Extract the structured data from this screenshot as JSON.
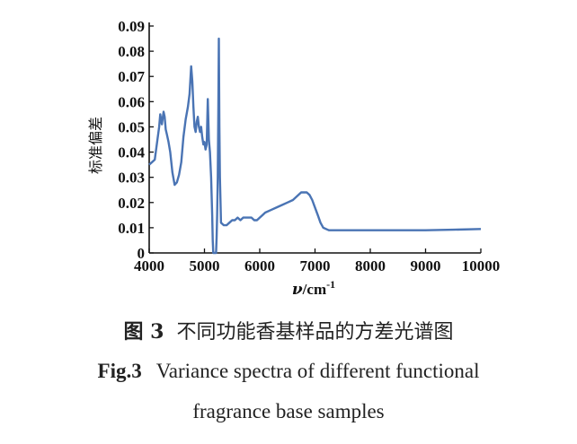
{
  "chart_data": {
    "type": "line",
    "title": "",
    "xlabel_symbol": "ν",
    "xlabel_unit": "/cm",
    "xlabel_exp": "-1",
    "ylabel": "标准偏差",
    "xlim": [
      4000,
      10000
    ],
    "ylim": [
      0,
      0.09
    ],
    "x_ticks": [
      "4000",
      "5000",
      "6000",
      "7000",
      "8000",
      "9000",
      "10000"
    ],
    "y_ticks": [
      "0",
      "0.01",
      "0.02",
      "0.03",
      "0.04",
      "0.05",
      "0.06",
      "0.07",
      "0.08",
      "0.09"
    ],
    "line_color": "#4a74b4",
    "grid": false,
    "series": [
      {
        "x": [
          4000,
          4050,
          4100,
          4150,
          4180,
          4200,
          4230,
          4260,
          4280,
          4300,
          4320,
          4350,
          4380,
          4420,
          4460,
          4500,
          4540,
          4580,
          4620,
          4660,
          4700,
          4730,
          4760,
          4780,
          4800,
          4820,
          4840,
          4860,
          4880,
          4900,
          4920,
          4940,
          4960,
          4980,
          5000,
          5020,
          5040,
          5060,
          5080,
          5100,
          5120,
          5140,
          5150,
          5160,
          5165,
          5170,
          5175,
          5180,
          5200,
          5210,
          5220,
          5230,
          5240,
          5250,
          5260,
          5270,
          5280,
          5300,
          5350,
          5400,
          5450,
          5500,
          5550,
          5600,
          5650,
          5700,
          5750,
          5800,
          5850,
          5900,
          5950,
          6000,
          6050,
          6100,
          6200,
          6300,
          6400,
          6500,
          6600,
          6700,
          6750,
          6800,
          6850,
          6900,
          6950,
          7000,
          7050,
          7100,
          7150,
          7200,
          7250,
          7300,
          7400,
          7600,
          8000,
          8500,
          9000,
          9500,
          10000
        ],
        "y": [
          0.035,
          0.036,
          0.037,
          0.045,
          0.05,
          0.055,
          0.051,
          0.056,
          0.054,
          0.049,
          0.047,
          0.044,
          0.04,
          0.032,
          0.027,
          0.028,
          0.031,
          0.036,
          0.046,
          0.053,
          0.058,
          0.063,
          0.074,
          0.068,
          0.058,
          0.05,
          0.048,
          0.052,
          0.054,
          0.05,
          0.048,
          0.05,
          0.046,
          0.043,
          0.044,
          0.041,
          0.043,
          0.061,
          0.045,
          0.04,
          0.03,
          0.015,
          0.005,
          0.0,
          0.0,
          0.0,
          0.0,
          0.0,
          0.0,
          0.0,
          0.006,
          0.015,
          0.03,
          0.055,
          0.085,
          0.05,
          0.03,
          0.012,
          0.011,
          0.011,
          0.012,
          0.013,
          0.013,
          0.014,
          0.013,
          0.014,
          0.014,
          0.014,
          0.014,
          0.013,
          0.013,
          0.014,
          0.015,
          0.016,
          0.017,
          0.018,
          0.019,
          0.02,
          0.021,
          0.023,
          0.024,
          0.024,
          0.024,
          0.023,
          0.021,
          0.018,
          0.015,
          0.012,
          0.01,
          0.0095,
          0.009,
          0.009,
          0.009,
          0.009,
          0.009,
          0.009,
          0.009,
          0.0092,
          0.0095
        ]
      }
    ]
  },
  "caption": {
    "zh_num": "图 3",
    "zh_text": "不同功能香基样品的方差光谱图",
    "en_num": "Fig.3",
    "en_line1": "Variance spectra of different functional",
    "en_line2": "fragrance base samples"
  }
}
